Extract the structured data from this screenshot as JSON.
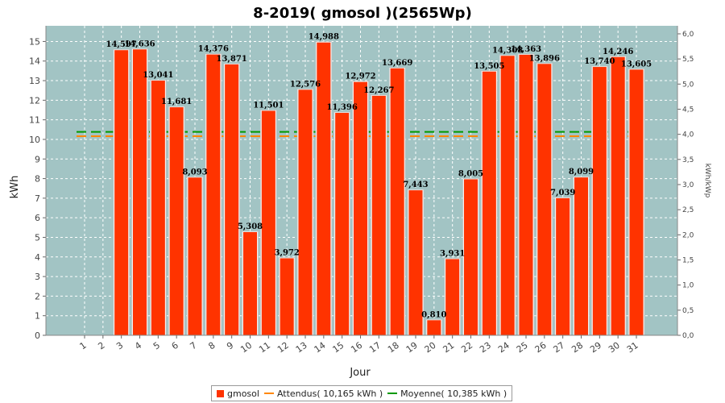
{
  "chart_data": {
    "type": "bar",
    "title": "8-2019( gmosol )(2565Wp)",
    "xlabel": "Jour",
    "ylabel": "kWh",
    "y2label": "kWh/kWp",
    "ylim": [
      0,
      15.8
    ],
    "yticks": [
      0,
      1,
      2,
      3,
      4,
      5,
      6,
      7,
      8,
      9,
      10,
      11,
      12,
      13,
      14,
      15
    ],
    "y2lim": [
      0,
      6.16
    ],
    "y2ticks": [
      "0,0",
      "0,5",
      "1,0",
      "1,5",
      "2,0",
      "2,5",
      "3,0",
      "3,5",
      "4,0",
      "4,5",
      "5,0",
      "5,5",
      "6,0"
    ],
    "grid": true,
    "legend_position": "bottom",
    "categories": [
      "1",
      "2",
      "3",
      "4",
      "5",
      "6",
      "7",
      "8",
      "9",
      "10",
      "11",
      "12",
      "13",
      "14",
      "15",
      "16",
      "17",
      "18",
      "19",
      "20",
      "21",
      "22",
      "23",
      "24",
      "25",
      "26",
      "27",
      "28",
      "29",
      "30",
      "31"
    ],
    "series": [
      {
        "name": "gmosol",
        "color": "#ff3300",
        "values": [
          null,
          null,
          14.597,
          14.636,
          13.041,
          11.681,
          8.093,
          14.376,
          13.871,
          5.308,
          11.501,
          3.972,
          12.576,
          14.988,
          11.396,
          12.972,
          12.267,
          13.669,
          7.443,
          0.81,
          3.931,
          8.005,
          13.505,
          14.308,
          14.363,
          13.896,
          7.039,
          8.099,
          13.74,
          14.246,
          13.605
        ],
        "labels": [
          "",
          "",
          "14,597",
          "14,636",
          "13,041",
          "11,681",
          "8,093",
          "14,376",
          "13,871",
          "5,308",
          "11,501",
          "3,972",
          "12,576",
          "14,988",
          "11,396",
          "12,972",
          "12,267",
          "13,669",
          "7,443",
          "0,810",
          "3,931",
          "8,005",
          "13,505",
          "14,308",
          "14,363",
          "13,896",
          "7,039",
          "8,099",
          "13,740",
          "14,246",
          "13,605"
        ]
      }
    ],
    "reference_lines": [
      {
        "name": "Attendus( 10,165 kWh )",
        "value": 10.165,
        "color": "#ff8800"
      },
      {
        "name": "Moyenne( 10,385 kWh )",
        "value": 10.385,
        "color": "#009900"
      }
    ],
    "colors": {
      "plot_background": "#a2c4c4",
      "grid": "#ffffff"
    }
  }
}
